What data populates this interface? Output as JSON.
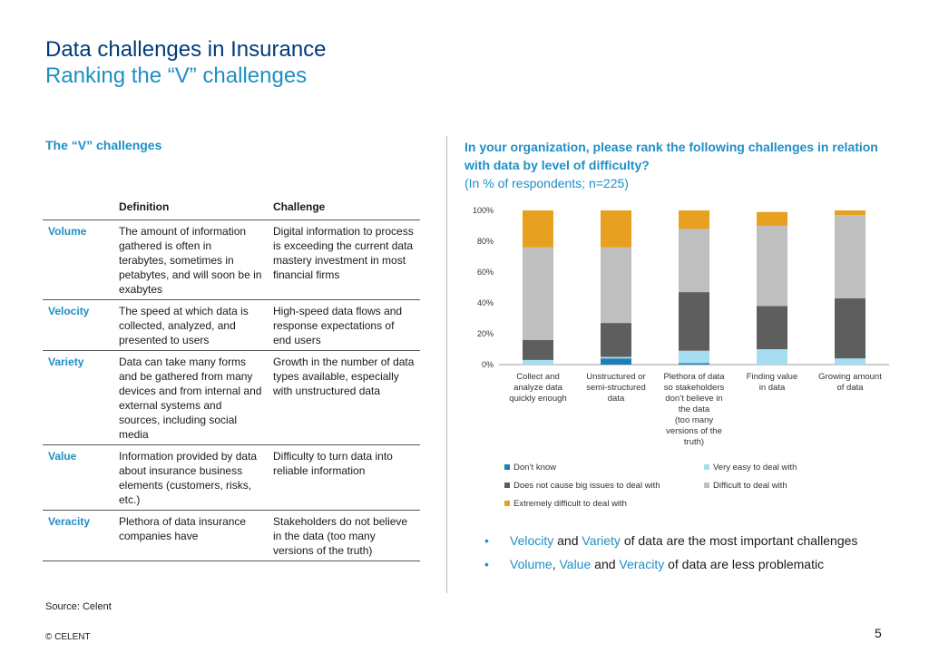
{
  "title": "Data challenges in Insurance",
  "subtitle": "Ranking the “V” challenges",
  "left_heading": "The “V” challenges",
  "table": {
    "headers": [
      "",
      "Definition",
      "Challenge"
    ],
    "rows": [
      {
        "name": "Volume",
        "definition": "The amount of information gathered is often in terabytes, sometimes in petabytes, and will soon be in exabytes",
        "challenge": "Digital information to process is exceeding the current data mastery investment in most financial firms"
      },
      {
        "name": "Velocity",
        "definition": "The speed at which data is collected, analyzed, and presented to users",
        "challenge": "High-speed data flows and response expectations of end users"
      },
      {
        "name": "Variety",
        "definition": "Data can take many forms and be gathered from many devices and from internal and external systems and sources, including social media",
        "challenge": "Growth in the number of data types available, especially with unstructured data"
      },
      {
        "name": "Value",
        "definition": "Information provided by data about insurance business elements (customers, risks, etc.)",
        "challenge": "Difficulty to turn data into reliable information"
      },
      {
        "name": "Veracity",
        "definition": "Plethora of data insurance companies have",
        "challenge": "Stakeholders do not believe in the data (too many versions of the truth)"
      }
    ]
  },
  "question": {
    "bold": "In your organization, please rank the following challenges in relation with data by level of difficulty?",
    "note": "(In % of respondents; n=225)"
  },
  "chart_data": {
    "type": "bar",
    "stacked": true,
    "categories": [
      "Collect and analyze data quickly enough",
      "Unstructured or semi-structured data",
      "Plethora of data so stakeholders don’t believe in the data (too many versions of the truth)",
      "Finding value in data",
      "Growing amount of data"
    ],
    "category_lines": [
      [
        "Collect and",
        "analyze data",
        "quickly enough"
      ],
      [
        "Unstructured or",
        "semi-structured",
        "data"
      ],
      [
        "Plethora of data",
        "so stakeholders",
        "don’t believe in",
        "the data",
        "(too many",
        "versions of the",
        "truth)"
      ],
      [
        "Finding value",
        "in data"
      ],
      [
        "Growing amount",
        "of data"
      ]
    ],
    "ylim": [
      0,
      100
    ],
    "yticks": [
      "0%",
      "20%",
      "40%",
      "60%",
      "80%",
      "100%"
    ],
    "series": [
      {
        "name": "Don’t know",
        "color": "#1f7fb4",
        "values": [
          0,
          4,
          1,
          0,
          0
        ]
      },
      {
        "name": "Very easy to deal with",
        "color": "#a5def2",
        "values": [
          3,
          1,
          8,
          10,
          4
        ]
      },
      {
        "name": "Does not cause big issues to deal with",
        "color": "#5e5e5e",
        "values": [
          13,
          22,
          38,
          28,
          39
        ]
      },
      {
        "name": "Difficult to deal with",
        "color": "#bfbfbf",
        "values": [
          60,
          49,
          41,
          52,
          54
        ]
      },
      {
        "name": "Extremely difficult to deal with",
        "color": "#e8a020",
        "values": [
          24,
          24,
          12,
          9,
          3
        ]
      }
    ]
  },
  "bullets": [
    {
      "parts": [
        {
          "t": "Velocity",
          "hl": true
        },
        {
          "t": " and ",
          "hl": false
        },
        {
          "t": "Variety",
          "hl": true
        },
        {
          "t": " of data are the most important challenges",
          "hl": false
        }
      ]
    },
    {
      "parts": [
        {
          "t": "Volume",
          "hl": true
        },
        {
          "t": ", ",
          "hl": false
        },
        {
          "t": "Value",
          "hl": true
        },
        {
          "t": " and ",
          "hl": false
        },
        {
          "t": "Veracity",
          "hl": true
        },
        {
          "t": " of data are less problematic",
          "hl": false
        }
      ]
    }
  ],
  "bullet_glyph": "•",
  "source": "Source: Celent",
  "copyright": "© CELENT",
  "page_number": "5"
}
